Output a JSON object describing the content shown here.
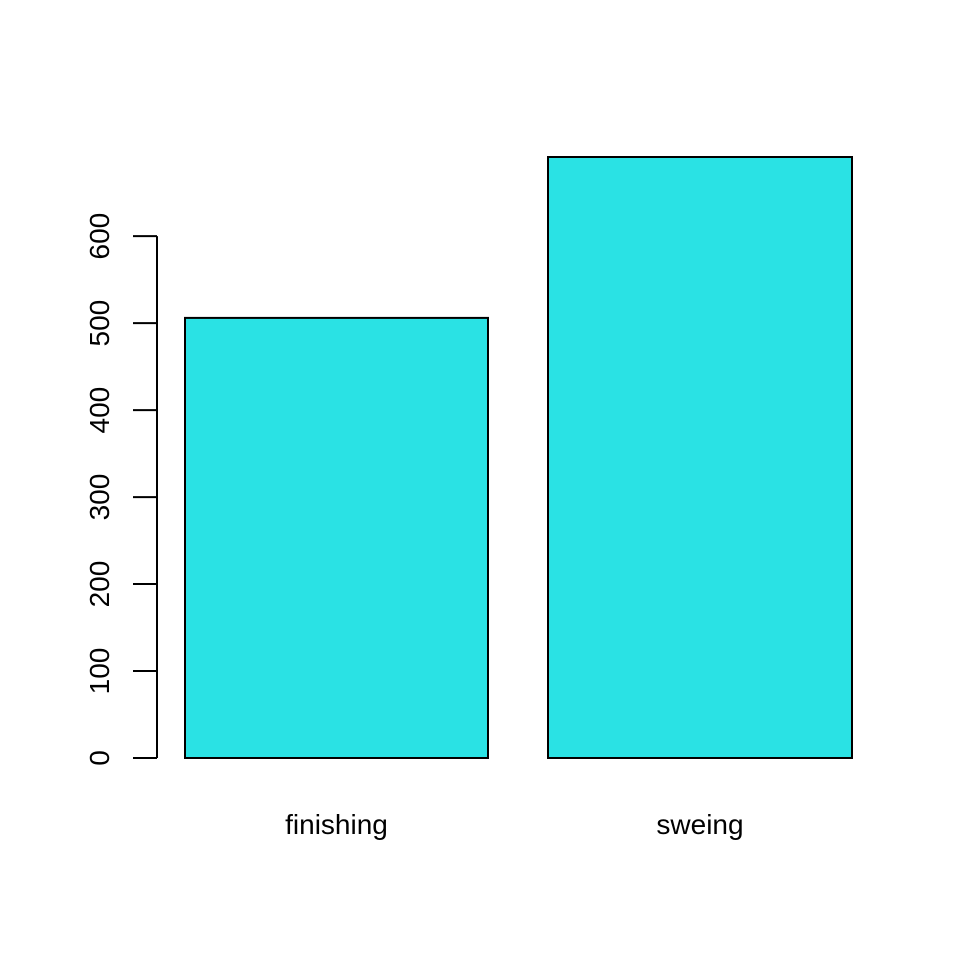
{
  "chart_data": {
    "type": "bar",
    "categories": [
      "finishing",
      "sweing"
    ],
    "values": [
      506,
      691
    ],
    "title": "",
    "xlabel": "",
    "ylabel": "",
    "ylim": [
      0,
      691
    ],
    "yticks": [
      0,
      100,
      200,
      300,
      400,
      500,
      600
    ],
    "ytick_labels": [
      "0",
      "100",
      "200",
      "300",
      "400",
      "500",
      "600"
    ],
    "grid": false,
    "bar_color": "#2AE2E4",
    "bar_edge_color": "#000000"
  }
}
